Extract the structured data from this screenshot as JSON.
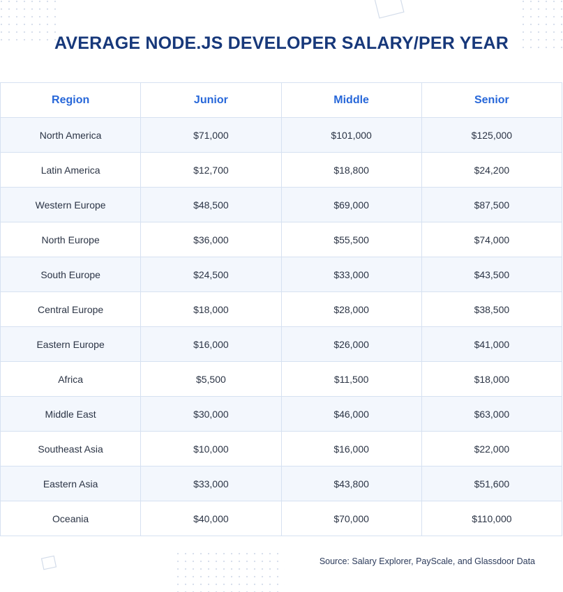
{
  "header": {
    "title": "AVERAGE NODE.JS DEVELOPER SALARY/PER YEAR"
  },
  "table": {
    "columns": [
      "Region",
      "Junior",
      "Middle",
      "Senior"
    ],
    "rows": [
      [
        "North America",
        "$71,000",
        "$101,000",
        "$125,000"
      ],
      [
        "Latin America",
        "$12,700",
        "$18,800",
        "$24,200"
      ],
      [
        "Western Europe",
        "$48,500",
        "$69,000",
        "$87,500"
      ],
      [
        "North Europe",
        "$36,000",
        "$55,500",
        "$74,000"
      ],
      [
        "South Europe",
        "$24,500",
        "$33,000",
        "$43,500"
      ],
      [
        "Central Europe",
        "$18,000",
        "$28,000",
        "$38,500"
      ],
      [
        "Eastern Europe",
        "$16,000",
        "$26,000",
        "$41,000"
      ],
      [
        "Africa",
        "$5,500",
        "$11,500",
        "$18,000"
      ],
      [
        "Middle East",
        "$30,000",
        "$46,000",
        "$63,000"
      ],
      [
        "Southeast Asia",
        "$10,000",
        "$16,000",
        "$22,000"
      ],
      [
        "Eastern Asia",
        "$33,000",
        "$43,800",
        "$51,600"
      ],
      [
        "Oceania",
        "$40,000",
        "$70,000",
        "$110,000"
      ]
    ]
  },
  "footer": {
    "source": "Source: Salary Explorer, PayScale, and Glassdoor Data"
  }
}
